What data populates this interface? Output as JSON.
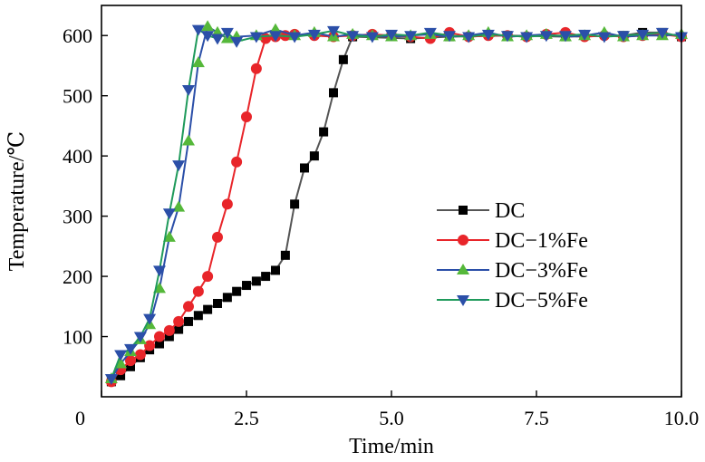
{
  "chart_data": {
    "type": "line",
    "title": "",
    "xlabel": "Time/min",
    "ylabel": "Temperature/℃",
    "xlim": [
      0,
      10.0
    ],
    "ylim": [
      0,
      650
    ],
    "xticks": [
      0,
      2.5,
      5.0,
      7.5,
      10.0
    ],
    "xtick_labels": [
      "0",
      "2.5",
      "5.0",
      "7.5",
      "10.0"
    ],
    "yticks": [
      100,
      200,
      300,
      400,
      500,
      600
    ],
    "ytick_labels": [
      "100",
      "200",
      "300",
      "400",
      "500",
      "600"
    ],
    "grid": false,
    "legend_position": "center-right",
    "series": [
      {
        "name": "DC",
        "color": "#555555",
        "marker_color": "#000000",
        "marker": "square",
        "x": [
          0.17,
          0.33,
          0.5,
          0.67,
          0.83,
          1.0,
          1.17,
          1.33,
          1.5,
          1.67,
          1.83,
          2.0,
          2.17,
          2.33,
          2.5,
          2.67,
          2.83,
          3.0,
          3.17,
          3.33,
          3.5,
          3.67,
          3.83,
          4.0,
          4.17,
          4.33,
          5.33,
          6.0,
          7.0,
          8.0,
          9.0,
          9.33,
          9.67,
          10.0
        ],
        "y": [
          25,
          35,
          50,
          65,
          78,
          88,
          100,
          112,
          125,
          135,
          145,
          155,
          165,
          175,
          185,
          192,
          200,
          210,
          235,
          320,
          380,
          400,
          440,
          505,
          560,
          598,
          595,
          598,
          600,
          598,
          600,
          605,
          605,
          598
        ]
      },
      {
        "name": "DC−1%Fe",
        "color": "#e8252a",
        "marker": "circle",
        "x": [
          0.17,
          0.33,
          0.5,
          0.67,
          0.83,
          1.0,
          1.17,
          1.33,
          1.5,
          1.67,
          1.83,
          2.0,
          2.17,
          2.33,
          2.5,
          2.67,
          2.83,
          3.0,
          3.17,
          3.33,
          3.67,
          4.0,
          4.33,
          4.67,
          5.0,
          5.33,
          5.67,
          6.0,
          6.33,
          6.67,
          7.0,
          7.33,
          7.67,
          8.0,
          8.33,
          8.67,
          9.0,
          9.33,
          9.67,
          10.0
        ],
        "y": [
          25,
          45,
          60,
          70,
          85,
          100,
          110,
          125,
          150,
          175,
          200,
          265,
          320,
          390,
          465,
          545,
          595,
          598,
          600,
          602,
          600,
          598,
          600,
          602,
          600,
          598,
          595,
          605,
          598,
          600,
          600,
          598,
          602,
          605,
          598,
          600,
          598,
          600,
          602,
          598
        ]
      },
      {
        "name": "DC−3%Fe",
        "color": "#2b4fa8",
        "marker_color": "#55b83a",
        "marker": "triangle-up",
        "x": [
          0.17,
          0.33,
          0.5,
          0.67,
          0.83,
          1.0,
          1.17,
          1.33,
          1.5,
          1.67,
          1.83,
          2.0,
          2.17,
          2.33,
          2.67,
          3.0,
          3.33,
          3.67,
          4.0,
          4.33,
          4.67,
          5.0,
          5.33,
          5.67,
          6.0,
          6.33,
          6.67,
          7.0,
          7.33,
          7.67,
          8.0,
          8.33,
          8.67,
          9.0,
          9.33,
          9.67,
          10.0
        ],
        "y": [
          30,
          55,
          75,
          95,
          120,
          180,
          265,
          315,
          425,
          555,
          615,
          605,
          595,
          598,
          600,
          610,
          600,
          605,
          598,
          602,
          600,
          598,
          600,
          602,
          598,
          600,
          605,
          598,
          600,
          602,
          598,
          600,
          605,
          598,
          600,
          600,
          602
        ]
      },
      {
        "name": "DC−5%Fe",
        "color": "#1f9a5b",
        "marker_color": "#2b4fa8",
        "marker": "triangle-down",
        "x": [
          0.17,
          0.33,
          0.5,
          0.67,
          0.83,
          1.0,
          1.17,
          1.33,
          1.5,
          1.67,
          1.83,
          2.0,
          2.17,
          2.33,
          2.67,
          3.0,
          3.33,
          3.67,
          4.0,
          4.33,
          4.67,
          5.0,
          5.33,
          5.67,
          6.0,
          6.33,
          6.67,
          7.0,
          7.33,
          7.67,
          8.0,
          8.33,
          8.67,
          9.0,
          9.33,
          9.67,
          10.0
        ],
        "y": [
          30,
          70,
          80,
          100,
          130,
          210,
          305,
          385,
          510,
          610,
          600,
          595,
          605,
          590,
          598,
          600,
          598,
          602,
          608,
          600,
          598,
          602,
          600,
          605,
          600,
          598,
          602,
          600,
          598,
          600,
          600,
          602,
          598,
          600,
          602,
          605,
          598
        ]
      }
    ]
  }
}
